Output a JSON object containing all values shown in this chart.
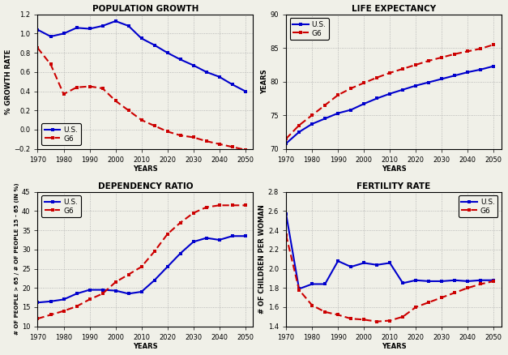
{
  "pop_growth": {
    "title": "POPULATION GROWTH",
    "xlabel": "YEARS",
    "ylabel": "% GROWTH RATE",
    "xlim": [
      1970,
      2053
    ],
    "ylim": [
      -0.2,
      1.2
    ],
    "yticks": [
      -0.2,
      0,
      0.2,
      0.4,
      0.6,
      0.8,
      1.0,
      1.2
    ],
    "xticks": [
      1970,
      1980,
      1990,
      2000,
      2010,
      2020,
      2030,
      2040,
      2050
    ],
    "us": {
      "x": [
        1970,
        1975,
        1980,
        1985,
        1990,
        1995,
        2000,
        2005,
        2010,
        2015,
        2020,
        2025,
        2030,
        2035,
        2040,
        2045,
        2050
      ],
      "y": [
        1.04,
        0.97,
        1.0,
        1.06,
        1.05,
        1.08,
        1.13,
        1.08,
        0.95,
        0.88,
        0.8,
        0.73,
        0.67,
        0.6,
        0.55,
        0.47,
        0.4
      ]
    },
    "g6": {
      "x": [
        1970,
        1975,
        1980,
        1985,
        1990,
        1995,
        2000,
        2005,
        2010,
        2015,
        2020,
        2025,
        2030,
        2035,
        2040,
        2045,
        2050
      ],
      "y": [
        0.85,
        0.68,
        0.37,
        0.44,
        0.45,
        0.43,
        0.3,
        0.2,
        0.1,
        0.04,
        -0.02,
        -0.06,
        -0.08,
        -0.12,
        -0.15,
        -0.18,
        -0.21
      ]
    }
  },
  "life_exp": {
    "title": "LIFE EXPECTANCY",
    "xlabel": "YEARS",
    "ylabel": "YEARS",
    "xlim": [
      1970,
      2053
    ],
    "ylim": [
      70,
      90
    ],
    "yticks": [
      70,
      75,
      80,
      85,
      90
    ],
    "xticks": [
      1970,
      1980,
      1990,
      2000,
      2010,
      2020,
      2030,
      2040,
      2050
    ],
    "us": {
      "x": [
        1970,
        1975,
        1980,
        1985,
        1990,
        1995,
        2000,
        2005,
        2010,
        2015,
        2020,
        2025,
        2030,
        2035,
        2040,
        2045,
        2050
      ],
      "y": [
        70.8,
        72.5,
        73.7,
        74.5,
        75.3,
        75.8,
        76.7,
        77.5,
        78.2,
        78.8,
        79.4,
        79.9,
        80.4,
        80.9,
        81.4,
        81.8,
        82.3
      ]
    },
    "g6": {
      "x": [
        1970,
        1975,
        1980,
        1985,
        1990,
        1995,
        2000,
        2005,
        2010,
        2015,
        2020,
        2025,
        2030,
        2035,
        2040,
        2045,
        2050
      ],
      "y": [
        71.5,
        73.5,
        75.0,
        76.5,
        78.0,
        79.0,
        79.8,
        80.6,
        81.3,
        81.9,
        82.5,
        83.1,
        83.6,
        84.1,
        84.5,
        84.9,
        85.5
      ]
    }
  },
  "dep_ratio": {
    "title": "DEPENDENCY RATIO",
    "xlabel": "YEARS",
    "ylabel": "# OF PEOPLE > 65 / # OF PEOPLE 15 - 65 (IN %)",
    "xlim": [
      1970,
      2053
    ],
    "ylim": [
      10,
      45
    ],
    "yticks": [
      10,
      15,
      20,
      25,
      30,
      35,
      40,
      45
    ],
    "xticks": [
      1970,
      1980,
      1990,
      2000,
      2010,
      2020,
      2030,
      2040,
      2050
    ],
    "us": {
      "x": [
        1970,
        1975,
        1980,
        1985,
        1990,
        1995,
        2000,
        2005,
        2010,
        2015,
        2020,
        2025,
        2030,
        2035,
        2040,
        2045,
        2050
      ],
      "y": [
        16.2,
        16.5,
        17.0,
        18.5,
        19.5,
        19.5,
        19.3,
        18.5,
        19.0,
        22.0,
        25.5,
        29.0,
        32.0,
        33.0,
        32.5,
        33.5,
        33.5
      ]
    },
    "g6": {
      "x": [
        1970,
        1975,
        1980,
        1985,
        1990,
        1995,
        2000,
        2005,
        2010,
        2015,
        2020,
        2025,
        2030,
        2035,
        2040,
        2045,
        2050
      ],
      "y": [
        12.0,
        13.0,
        14.0,
        15.2,
        17.0,
        18.5,
        21.5,
        23.5,
        25.5,
        29.5,
        34.0,
        37.0,
        39.5,
        41.0,
        41.5,
        41.5,
        41.5
      ]
    }
  },
  "fertility": {
    "title": "FERTILITY RATE",
    "xlabel": "YEARS",
    "ylabel": "# OF CHILDREN PER WOMAN",
    "xlim": [
      1970,
      2053
    ],
    "ylim": [
      1.4,
      2.8
    ],
    "yticks": [
      1.4,
      1.6,
      1.8,
      2.0,
      2.2,
      2.4,
      2.6,
      2.8
    ],
    "xticks": [
      1970,
      1980,
      1990,
      2000,
      2010,
      2020,
      2030,
      2040,
      2050
    ],
    "us": {
      "x": [
        1970,
        1975,
        1980,
        1985,
        1990,
        1995,
        2000,
        2005,
        2010,
        2015,
        2020,
        2025,
        2030,
        2035,
        2040,
        2045,
        2050
      ],
      "y": [
        2.57,
        1.79,
        1.84,
        1.84,
        2.08,
        2.02,
        2.06,
        2.04,
        2.06,
        1.85,
        1.88,
        1.87,
        1.87,
        1.88,
        1.87,
        1.88,
        1.88
      ]
    },
    "g6": {
      "x": [
        1970,
        1975,
        1980,
        1985,
        1990,
        1995,
        2000,
        2005,
        2010,
        2015,
        2020,
        2025,
        2030,
        2035,
        2040,
        2045,
        2050
      ],
      "y": [
        2.35,
        1.78,
        1.62,
        1.55,
        1.52,
        1.48,
        1.47,
        1.45,
        1.46,
        1.5,
        1.6,
        1.65,
        1.7,
        1.75,
        1.8,
        1.84,
        1.87
      ]
    }
  },
  "us_color": "#0000cc",
  "g6_color": "#cc0000",
  "bg_color": "#f0f0e8",
  "grid_color": "#aaaaaa",
  "title_fontsize": 7.5,
  "label_fontsize": 6,
  "tick_fontsize": 6,
  "legend_fontsize": 6.5
}
